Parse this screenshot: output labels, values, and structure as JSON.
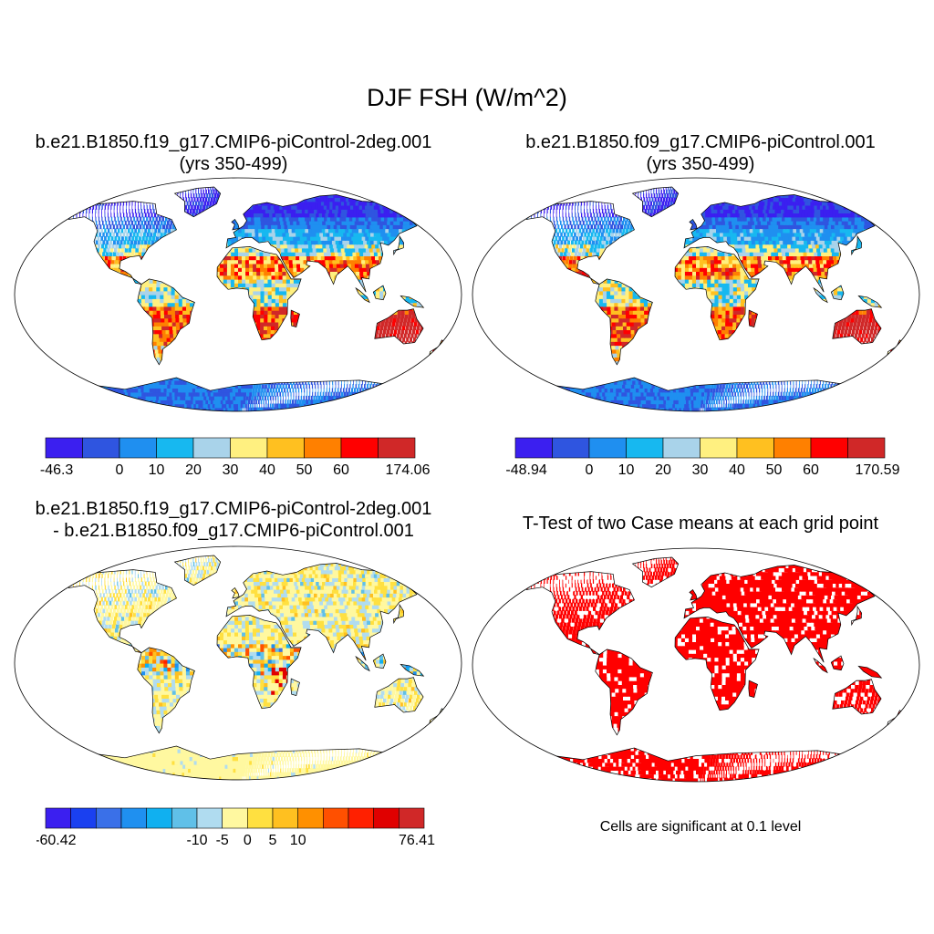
{
  "title": "DJF FSH (W/m^2)",
  "panels": [
    {
      "id": "case1",
      "title_line1": "b.e21.B1850.f19_g17.CMIP6-piControl-2deg.001",
      "title_line2": "(yrs 350-499)",
      "colorbar": {
        "min_label": "-46.3",
        "max_label": "174.06",
        "tick_labels": [
          "0",
          "10",
          "20",
          "30",
          "40",
          "50",
          "60"
        ],
        "colors": [
          "#3b1ff0",
          "#2f55e0",
          "#1f8ff0",
          "#17b8f0",
          "#a9d3ea",
          "#fff080",
          "#ffc020",
          "#ff8000",
          "#ff0000",
          "#d02828"
        ]
      }
    },
    {
      "id": "case2",
      "title_line1": "b.e21.B1850.f09_g17.CMIP6-piControl.001",
      "title_line2": "(yrs 350-499)",
      "colorbar": {
        "min_label": "-48.94",
        "max_label": "170.59",
        "tick_labels": [
          "0",
          "10",
          "20",
          "30",
          "40",
          "50",
          "60"
        ],
        "colors": [
          "#3b1ff0",
          "#2f55e0",
          "#1f8ff0",
          "#17b8f0",
          "#a9d3ea",
          "#fff080",
          "#ffc020",
          "#ff8000",
          "#ff0000",
          "#d02828"
        ]
      }
    },
    {
      "id": "difference",
      "title_line1": "b.e21.B1850.f19_g17.CMIP6-piControl-2deg.001",
      "title_line2": "- b.e21.B1850.f09_g17.CMIP6-piControl.001",
      "colorbar": {
        "min_label": "-60.42",
        "max_label": "76.41",
        "tick_labels": [
          "-10",
          "-5",
          "0",
          "5",
          "10"
        ],
        "colors": [
          "#3b1ff0",
          "#1a40f0",
          "#3a70e8",
          "#1f90f0",
          "#10b0f0",
          "#60c0e8",
          "#b0dcf0",
          "#fff8a0",
          "#ffe040",
          "#ffc020",
          "#ff9000",
          "#ff5000",
          "#ff2000",
          "#e00000",
          "#d02828"
        ]
      }
    },
    {
      "id": "ttest",
      "title_line1": "T-Test of two Case means at each grid point",
      "note": "Cells are significant at 0.1 level",
      "sig_color": "#ff0000"
    }
  ]
}
